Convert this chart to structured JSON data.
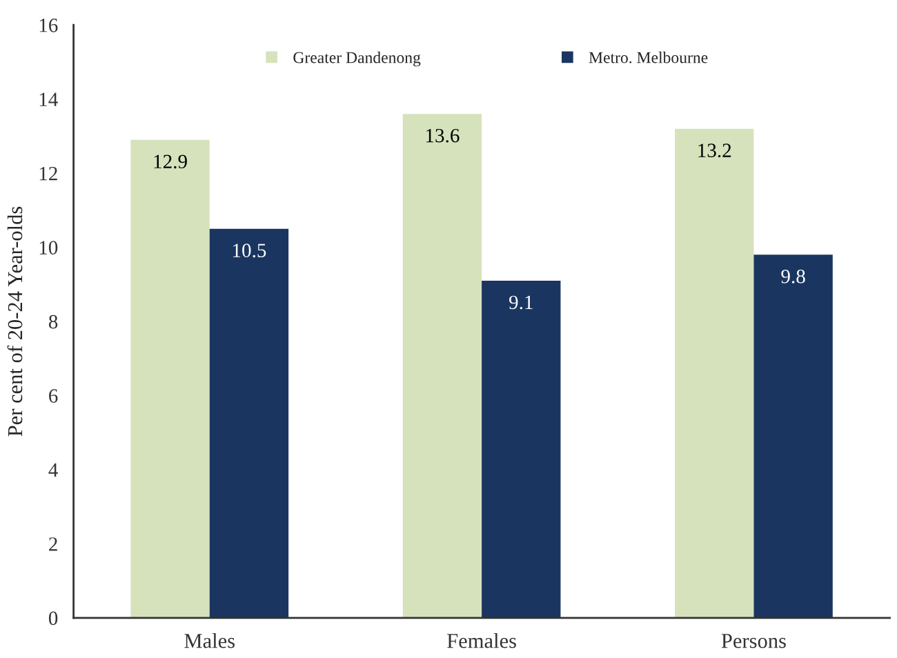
{
  "chart_data": {
    "type": "bar",
    "ylabel": "Per cent of 20-24 Year-olds",
    "categories": [
      "Males",
      "Females",
      "Persons"
    ],
    "series": [
      {
        "name": "Greater Dandenong",
        "color": "#d6e2bc",
        "values": [
          12.9,
          13.6,
          13.2
        ]
      },
      {
        "name": "Metro. Melbourne",
        "color": "#1a3660",
        "values": [
          10.5,
          9.1,
          9.8
        ]
      }
    ],
    "ylim": [
      0,
      16
    ],
    "yticks": [
      0,
      2,
      4,
      6,
      8,
      10,
      12,
      14,
      16
    ],
    "data_labels": true,
    "grid": false,
    "legend": "top"
  }
}
